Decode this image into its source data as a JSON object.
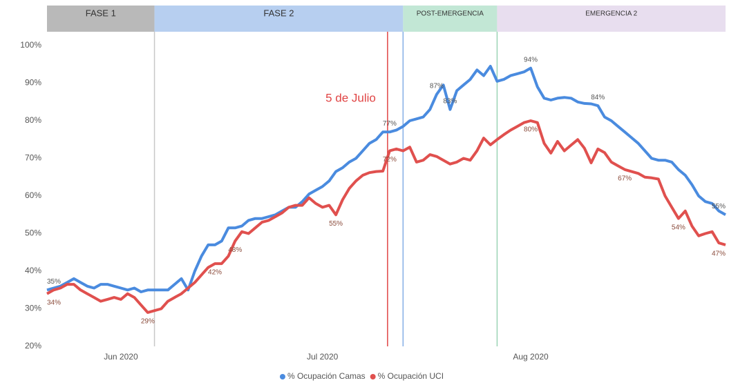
{
  "chart_data": {
    "type": "line",
    "categories": [
      null,
      null,
      null,
      null,
      null,
      null,
      null,
      null,
      null,
      null,
      null,
      "Jun 2020",
      null,
      null,
      null,
      null,
      null,
      null,
      null,
      null,
      null,
      null,
      null,
      null,
      null,
      null,
      null,
      null,
      null,
      null,
      null,
      null,
      null,
      null,
      null,
      null,
      null,
      null,
      null,
      null,
      null,
      "Jul 2020",
      null,
      null,
      null,
      null,
      null,
      null,
      null,
      null,
      null,
      null,
      null,
      null,
      null,
      null,
      null,
      null,
      null,
      null,
      null,
      null,
      null,
      null,
      null,
      null,
      null,
      null,
      null,
      null,
      null,
      null,
      "Aug 2020",
      null,
      null,
      null,
      null,
      null,
      null,
      null,
      null,
      null,
      null,
      null,
      null,
      null,
      null,
      null,
      null,
      null,
      null,
      null,
      null,
      null,
      null,
      null,
      null,
      null,
      null,
      null,
      null,
      null
    ],
    "series": [
      {
        "name": "% Ocupación Camas",
        "color": "#4a8bdf",
        "values": [
          35,
          35.5,
          36,
          37,
          38,
          37,
          36,
          35.5,
          36.5,
          36.5,
          36,
          35.5,
          35,
          35.5,
          34.5,
          35,
          35,
          35,
          35,
          36.5,
          38,
          35,
          40,
          44,
          47,
          47,
          48,
          51.5,
          51.5,
          52,
          53.5,
          54,
          54,
          54.5,
          55,
          56,
          57,
          57,
          58.5,
          60.5,
          61.5,
          62.5,
          64,
          66.5,
          67.5,
          69,
          70,
          72,
          74,
          75,
          77,
          77,
          77.5,
          78.5,
          80,
          80.5,
          81,
          83,
          87,
          89.5,
          83,
          88,
          89.5,
          91,
          93.5,
          92,
          94.5,
          90.5,
          91,
          92,
          92.5,
          93,
          94,
          89,
          86,
          85.5,
          86,
          86.2,
          86,
          85,
          84.6,
          84.5,
          84,
          81,
          80,
          78.5,
          77,
          75.5,
          74,
          72,
          70,
          69.5,
          69.5,
          69,
          67,
          65.5,
          63,
          60,
          58.5,
          58,
          56,
          55
        ],
        "value_labels": [
          "35%",
          null,
          null,
          null,
          null,
          null,
          null,
          null,
          null,
          null,
          null,
          null,
          null,
          null,
          null,
          null,
          null,
          null,
          null,
          null,
          null,
          null,
          null,
          null,
          null,
          null,
          null,
          null,
          null,
          null,
          null,
          null,
          null,
          null,
          null,
          null,
          null,
          null,
          null,
          null,
          null,
          null,
          null,
          null,
          null,
          null,
          null,
          null,
          null,
          null,
          null,
          "77%",
          null,
          null,
          null,
          null,
          null,
          null,
          "87%",
          null,
          "83%",
          null,
          null,
          null,
          null,
          null,
          null,
          null,
          null,
          null,
          null,
          null,
          "94%",
          null,
          null,
          null,
          null,
          null,
          null,
          null,
          null,
          null,
          "84%",
          null,
          null,
          null,
          null,
          null,
          null,
          null,
          null,
          null,
          null,
          null,
          null,
          null,
          null,
          null,
          null,
          null,
          null,
          "55%"
        ]
      },
      {
        "name": "% Ocupación UCI",
        "color": "#e0504e",
        "values": [
          34,
          35,
          35.5,
          36.5,
          36.5,
          35,
          34,
          33,
          32,
          32.5,
          33,
          32.5,
          34,
          33,
          31,
          29,
          29.5,
          30,
          32,
          33,
          34,
          35.5,
          37,
          39,
          41,
          42,
          42,
          44,
          48,
          50.5,
          50,
          51.5,
          53,
          53.5,
          54.5,
          55.5,
          57,
          57.5,
          57.5,
          59.5,
          58,
          57,
          57.5,
          55,
          59,
          62,
          64,
          65.5,
          66.2,
          66.5,
          66.6,
          72,
          72.5,
          72,
          73,
          69,
          69.5,
          71,
          70.5,
          69.5,
          68.5,
          69,
          70,
          69.5,
          72,
          75.4,
          73.6,
          75,
          76.3,
          77.5,
          78.5,
          79.5,
          80,
          79.5,
          74,
          71.4,
          74.5,
          72,
          73.5,
          75,
          72.7,
          68.8,
          72.5,
          71.5,
          69,
          68,
          67,
          66.5,
          66,
          65,
          64.8,
          64.5,
          60,
          57,
          54,
          56,
          52,
          49.4,
          50,
          50.5,
          47.5,
          47
        ],
        "value_labels": [
          "34%",
          null,
          null,
          null,
          null,
          null,
          null,
          null,
          null,
          null,
          null,
          null,
          null,
          null,
          null,
          "29%",
          null,
          null,
          null,
          null,
          null,
          null,
          null,
          null,
          null,
          "42%",
          null,
          null,
          "48%",
          null,
          null,
          null,
          null,
          null,
          null,
          null,
          null,
          null,
          null,
          null,
          null,
          null,
          null,
          "55%",
          null,
          null,
          null,
          null,
          null,
          null,
          null,
          "72%",
          null,
          null,
          null,
          null,
          null,
          null,
          null,
          null,
          null,
          null,
          null,
          null,
          null,
          null,
          null,
          null,
          null,
          null,
          null,
          null,
          "80%",
          null,
          null,
          null,
          null,
          null,
          null,
          null,
          null,
          null,
          null,
          null,
          null,
          null,
          "67%",
          null,
          null,
          null,
          null,
          null,
          null,
          null,
          "54%",
          null,
          null,
          null,
          null,
          null,
          null,
          "47%"
        ]
      }
    ],
    "ylim": [
      20,
      100
    ],
    "yticks": [
      {
        "value": 20,
        "label": "20%"
      },
      {
        "value": 30,
        "label": "30%"
      },
      {
        "value": 40,
        "label": "40%"
      },
      {
        "value": 50,
        "label": "50%"
      },
      {
        "value": 60,
        "label": "60%"
      },
      {
        "value": 70,
        "label": "70%"
      },
      {
        "value": 80,
        "label": "80%"
      },
      {
        "value": 90,
        "label": "90%"
      },
      {
        "value": 100,
        "label": "100%"
      }
    ],
    "grid": false,
    "legend": "bottom",
    "phases": [
      {
        "label": "FASE 1",
        "start": 0,
        "end": 16,
        "color": "#b9b9b9",
        "line_color": "#c8c8c8"
      },
      {
        "label": "FASE 2",
        "start": 16,
        "end": 53,
        "color": "#b7cff0",
        "line_color": "#c8c8c8"
      },
      {
        "label": "POST-EMERGENCIA",
        "start": 53,
        "end": 67,
        "color": "#c2e7d5",
        "line_color": "#84aee6"
      },
      {
        "label": "EMERGENCIA 2",
        "start": 67,
        "end": 101,
        "color": "#e8deef",
        "line_color": "#9ad3b4"
      }
    ],
    "marker": {
      "label": "5 de Julio",
      "index": 51,
      "color": "#e04444"
    }
  }
}
